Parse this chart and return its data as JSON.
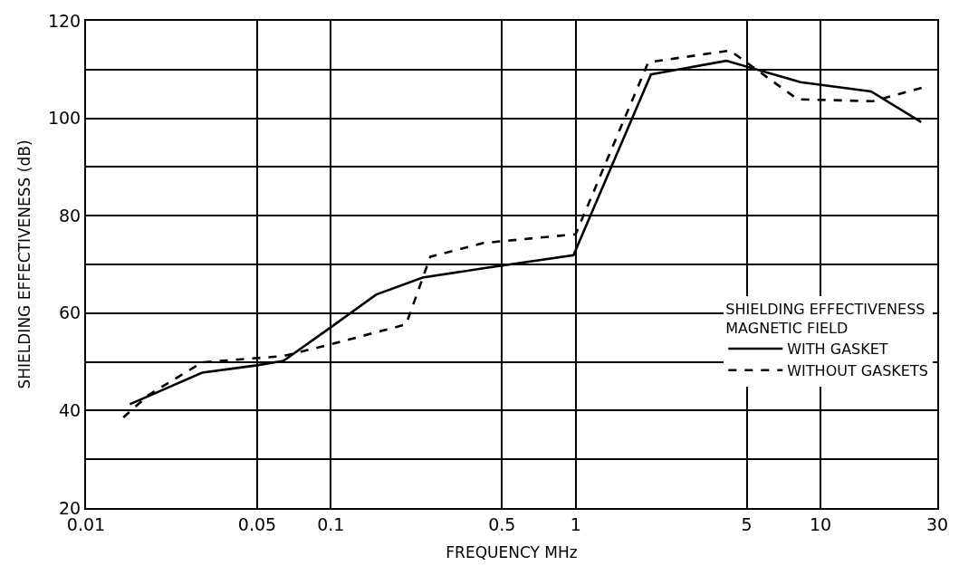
{
  "chart_data": {
    "type": "line",
    "xlabel": "FREQUENCY MHz",
    "ylabel": "SHIELDING EFFECTIVENESS (dB)",
    "legend_title": "SHIELDING EFFECTIVENESS\nMAGNETIC FIELD",
    "log": "x",
    "xlim": [
      0.01,
      30
    ],
    "xticks": [
      0.01,
      0.05,
      0.1,
      0.5,
      1,
      5,
      10,
      30
    ],
    "ylim": [
      20,
      120
    ],
    "yticks": [
      20,
      {
        "value": 30,
        "label": null
      },
      40,
      {
        "value": 50,
        "label": null
      },
      60,
      {
        "value": 70,
        "label": null
      },
      80,
      {
        "value": 90,
        "label": null
      },
      100,
      {
        "value": 110,
        "label": null
      },
      120
    ],
    "grid": true,
    "legend": "bottom right",
    "marker": "none",
    "series": [
      {
        "name": "WITH GASKET",
        "color": "#000000",
        "line_style": "solid",
        "x": [
          0.0151,
          0.0298,
          0.05,
          0.064,
          0.1,
          0.153,
          0.237,
          0.42,
          0.98,
          2.03,
          4.12,
          8.3,
          16.1,
          25.8
        ],
        "values": [
          41.3,
          47.8,
          49.3,
          50.2,
          57.1,
          63.8,
          67.3,
          69.2,
          71.9,
          109,
          111.8,
          107.4,
          105.5,
          99.2
        ]
      },
      {
        "name": "WITHOUT GASKETS",
        "color": "#000000",
        "line_style": "dashed",
        "x": [
          0.0142,
          0.018,
          0.0298,
          0.064,
          0.1,
          0.203,
          0.255,
          0.42,
          1.0,
          1.98,
          4.27,
          8.07,
          16.4,
          26.2
        ],
        "values": [
          38.6,
          43.2,
          49.9,
          51.2,
          53.6,
          57.7,
          71.6,
          74.4,
          76.2,
          111.5,
          113.9,
          103.9,
          103.5,
          106.3
        ]
      }
    ]
  }
}
